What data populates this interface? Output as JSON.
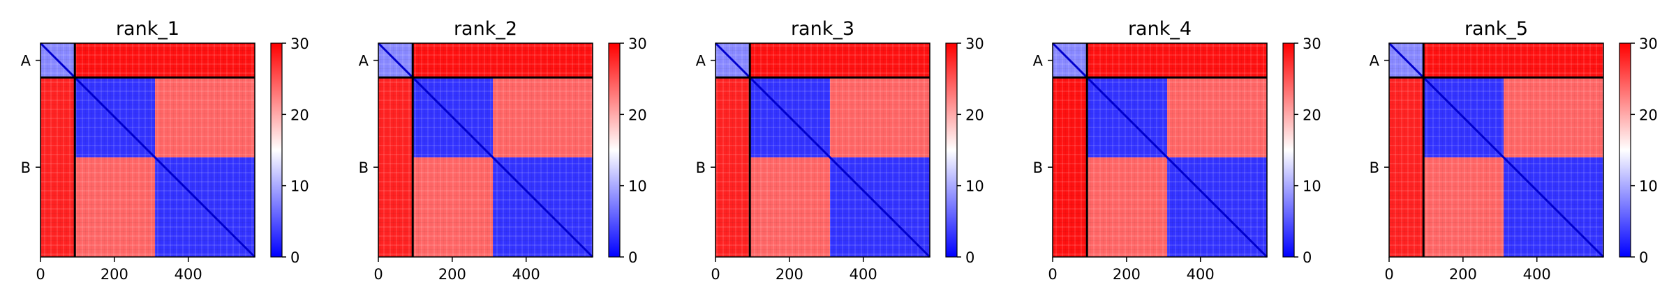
{
  "chart_data": [
    {
      "type": "heatmap",
      "title": "rank_1",
      "matrix_size": 580,
      "chain_boundary": 93,
      "domain_boundary": 310,
      "x_ticks": [
        0,
        200,
        400
      ],
      "y_tick_labels": [
        {
          "label": "A",
          "at": 46.5
        },
        {
          "label": "B",
          "at": 336.5
        }
      ],
      "colorbar": {
        "min": 0,
        "max": 30,
        "ticks": [
          0,
          10,
          20,
          30
        ],
        "colormap": "bwr"
      },
      "blocks": [
        {
          "rows": [
            0,
            93
          ],
          "cols": [
            0,
            93
          ],
          "value": 8
        },
        {
          "rows": [
            0,
            93
          ],
          "cols": [
            93,
            580
          ],
          "value": 29
        },
        {
          "rows": [
            93,
            580
          ],
          "cols": [
            0,
            93
          ],
          "value": 28
        },
        {
          "rows": [
            93,
            310
          ],
          "cols": [
            93,
            310
          ],
          "value": 3
        },
        {
          "rows": [
            93,
            310
          ],
          "cols": [
            310,
            580
          ],
          "value": 24
        },
        {
          "rows": [
            310,
            580
          ],
          "cols": [
            93,
            310
          ],
          "value": 24
        },
        {
          "rows": [
            310,
            580
          ],
          "cols": [
            310,
            580
          ],
          "value": 3
        }
      ]
    },
    {
      "type": "heatmap",
      "title": "rank_2",
      "matrix_size": 580,
      "chain_boundary": 93,
      "domain_boundary": 310,
      "x_ticks": [
        0,
        200,
        400
      ],
      "y_tick_labels": [
        {
          "label": "A",
          "at": 46.5
        },
        {
          "label": "B",
          "at": 336.5
        }
      ],
      "colorbar": {
        "min": 0,
        "max": 30,
        "ticks": [
          0,
          10,
          20,
          30
        ],
        "colormap": "bwr"
      },
      "blocks": [
        {
          "rows": [
            0,
            93
          ],
          "cols": [
            0,
            93
          ],
          "value": 8
        },
        {
          "rows": [
            0,
            93
          ],
          "cols": [
            93,
            580
          ],
          "value": 29
        },
        {
          "rows": [
            93,
            580
          ],
          "cols": [
            0,
            93
          ],
          "value": 28
        },
        {
          "rows": [
            93,
            310
          ],
          "cols": [
            93,
            310
          ],
          "value": 3
        },
        {
          "rows": [
            93,
            310
          ],
          "cols": [
            310,
            580
          ],
          "value": 24
        },
        {
          "rows": [
            310,
            580
          ],
          "cols": [
            93,
            310
          ],
          "value": 24
        },
        {
          "rows": [
            310,
            580
          ],
          "cols": [
            310,
            580
          ],
          "value": 3
        }
      ]
    },
    {
      "type": "heatmap",
      "title": "rank_3",
      "matrix_size": 580,
      "chain_boundary": 93,
      "domain_boundary": 310,
      "x_ticks": [
        0,
        200,
        400
      ],
      "y_tick_labels": [
        {
          "label": "A",
          "at": 46.5
        },
        {
          "label": "B",
          "at": 336.5
        }
      ],
      "colorbar": {
        "min": 0,
        "max": 30,
        "ticks": [
          0,
          10,
          20,
          30
        ],
        "colormap": "bwr"
      },
      "blocks": [
        {
          "rows": [
            0,
            93
          ],
          "cols": [
            0,
            93
          ],
          "value": 8
        },
        {
          "rows": [
            0,
            93
          ],
          "cols": [
            93,
            580
          ],
          "value": 29
        },
        {
          "rows": [
            93,
            580
          ],
          "cols": [
            0,
            93
          ],
          "value": 28
        },
        {
          "rows": [
            93,
            310
          ],
          "cols": [
            93,
            310
          ],
          "value": 3
        },
        {
          "rows": [
            93,
            310
          ],
          "cols": [
            310,
            580
          ],
          "value": 24
        },
        {
          "rows": [
            310,
            580
          ],
          "cols": [
            93,
            310
          ],
          "value": 24
        },
        {
          "rows": [
            310,
            580
          ],
          "cols": [
            310,
            580
          ],
          "value": 3
        }
      ]
    },
    {
      "type": "heatmap",
      "title": "rank_4",
      "matrix_size": 580,
      "chain_boundary": 93,
      "domain_boundary": 310,
      "x_ticks": [
        0,
        200,
        400
      ],
      "y_tick_labels": [
        {
          "label": "A",
          "at": 46.5
        },
        {
          "label": "B",
          "at": 336.5
        }
      ],
      "colorbar": {
        "min": 0,
        "max": 30,
        "ticks": [
          0,
          10,
          20,
          30
        ],
        "colormap": "bwr"
      },
      "blocks": [
        {
          "rows": [
            0,
            93
          ],
          "cols": [
            0,
            93
          ],
          "value": 8
        },
        {
          "rows": [
            0,
            93
          ],
          "cols": [
            93,
            580
          ],
          "value": 29
        },
        {
          "rows": [
            93,
            580
          ],
          "cols": [
            0,
            93
          ],
          "value": 29
        },
        {
          "rows": [
            93,
            310
          ],
          "cols": [
            93,
            310
          ],
          "value": 3
        },
        {
          "rows": [
            93,
            310
          ],
          "cols": [
            310,
            580
          ],
          "value": 24
        },
        {
          "rows": [
            310,
            580
          ],
          "cols": [
            93,
            310
          ],
          "value": 24
        },
        {
          "rows": [
            310,
            580
          ],
          "cols": [
            310,
            580
          ],
          "value": 3
        }
      ]
    },
    {
      "type": "heatmap",
      "title": "rank_5",
      "matrix_size": 580,
      "chain_boundary": 93,
      "domain_boundary": 310,
      "x_ticks": [
        0,
        200,
        400
      ],
      "y_tick_labels": [
        {
          "label": "A",
          "at": 46.5
        },
        {
          "label": "B",
          "at": 336.5
        }
      ],
      "colorbar": {
        "min": 0,
        "max": 30,
        "ticks": [
          0,
          10,
          20,
          30
        ],
        "colormap": "bwr"
      },
      "blocks": [
        {
          "rows": [
            0,
            93
          ],
          "cols": [
            0,
            93
          ],
          "value": 8
        },
        {
          "rows": [
            0,
            93
          ],
          "cols": [
            93,
            580
          ],
          "value": 29
        },
        {
          "rows": [
            93,
            580
          ],
          "cols": [
            0,
            93
          ],
          "value": 28
        },
        {
          "rows": [
            93,
            310
          ],
          "cols": [
            93,
            310
          ],
          "value": 3
        },
        {
          "rows": [
            93,
            310
          ],
          "cols": [
            310,
            580
          ],
          "value": 24
        },
        {
          "rows": [
            310,
            580
          ],
          "cols": [
            93,
            310
          ],
          "value": 24
        },
        {
          "rows": [
            310,
            580
          ],
          "cols": [
            310,
            580
          ],
          "value": 3
        }
      ]
    }
  ]
}
